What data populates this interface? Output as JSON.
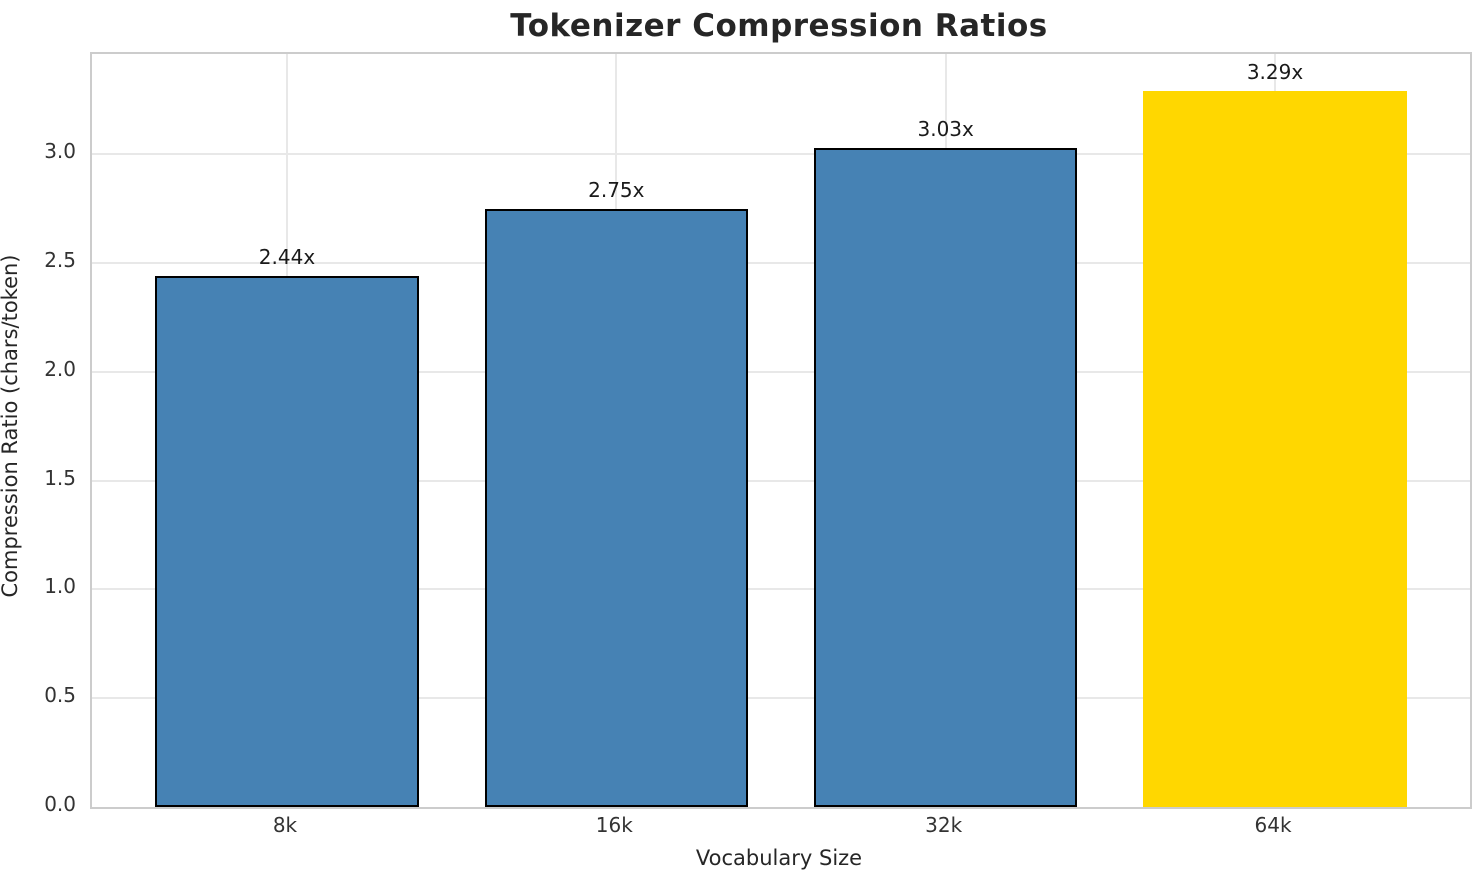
{
  "chart_data": {
    "type": "bar",
    "title": "Tokenizer Compression Ratios",
    "xlabel": "Vocabulary Size",
    "ylabel": "Compression Ratio (chars/token)",
    "categories": [
      "8k",
      "16k",
      "32k",
      "64k"
    ],
    "values": [
      2.44,
      2.75,
      3.03,
      3.29
    ],
    "bar_labels": [
      "2.44x",
      "2.75x",
      "3.03x",
      "3.29x"
    ],
    "bar_colors": [
      "#4682B4",
      "#4682B4",
      "#4682B4",
      "#FFD700"
    ],
    "bar_edge_colors": [
      "#000000",
      "#000000",
      "#000000",
      "none"
    ],
    "ytick_labels": [
      "0.0",
      "0.5",
      "1.0",
      "1.5",
      "2.0",
      "2.5",
      "3.0"
    ],
    "yticks": [
      0.0,
      0.5,
      1.0,
      1.5,
      2.0,
      2.5,
      3.0
    ],
    "ylim": [
      0,
      3.46
    ],
    "grid": true,
    "legend": "none",
    "highlight_color": "#FFD700",
    "base_bar_color": "#4682B4",
    "grid_color": "#e8e8e8",
    "spine_color": "#cccccc",
    "text_color": "#262626"
  }
}
